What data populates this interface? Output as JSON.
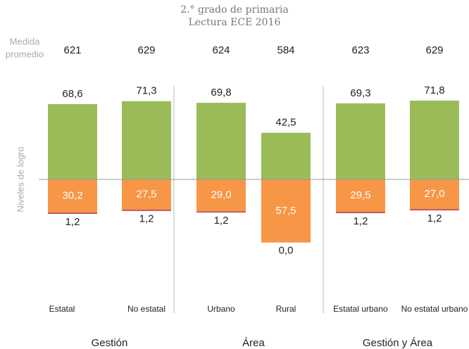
{
  "chart_data": {
    "type": "diverging_bar",
    "title": "2.° grado de primaria",
    "subtitle": "Lectura ECE 2016",
    "y_label": "Niveles de logro",
    "mean_label_lines": [
      "Medida",
      "promedio"
    ],
    "categories": [
      "Estatal",
      "No estatal",
      "Urbano",
      "Rural",
      "Estatal urbano",
      "No estatal urbano"
    ],
    "groups": [
      "Gestión",
      "Gestión",
      "Área",
      "Área",
      "Gestión y Área",
      "Gestión y Área"
    ],
    "means": [
      621,
      629,
      624,
      584,
      623,
      629
    ],
    "ylim": [
      -100,
      100
    ],
    "series": [
      {
        "color": "#9bbb59",
        "direction": "up",
        "values": [
          68.6,
          71.3,
          69.8,
          42.5,
          69.3,
          71.8
        ],
        "value_labels": [
          "68,6",
          "71,3",
          "69,8",
          "42,5",
          "69,3",
          "71,8"
        ]
      },
      {
        "color": "#f79646",
        "direction": "down",
        "values": [
          30.2,
          27.5,
          29.0,
          57.5,
          29.5,
          27.0
        ],
        "value_labels": [
          "30,2",
          "27,5",
          "29,0",
          "57,5",
          "29,5",
          "27,0"
        ]
      },
      {
        "color": "#c0504d",
        "direction": "down",
        "values": [
          1.2,
          1.2,
          1.2,
          0.0,
          1.2,
          1.2
        ],
        "value_labels": [
          "1,2",
          "1,2",
          "1,2",
          "0,0",
          "1,2",
          "1,2"
        ]
      }
    ]
  }
}
